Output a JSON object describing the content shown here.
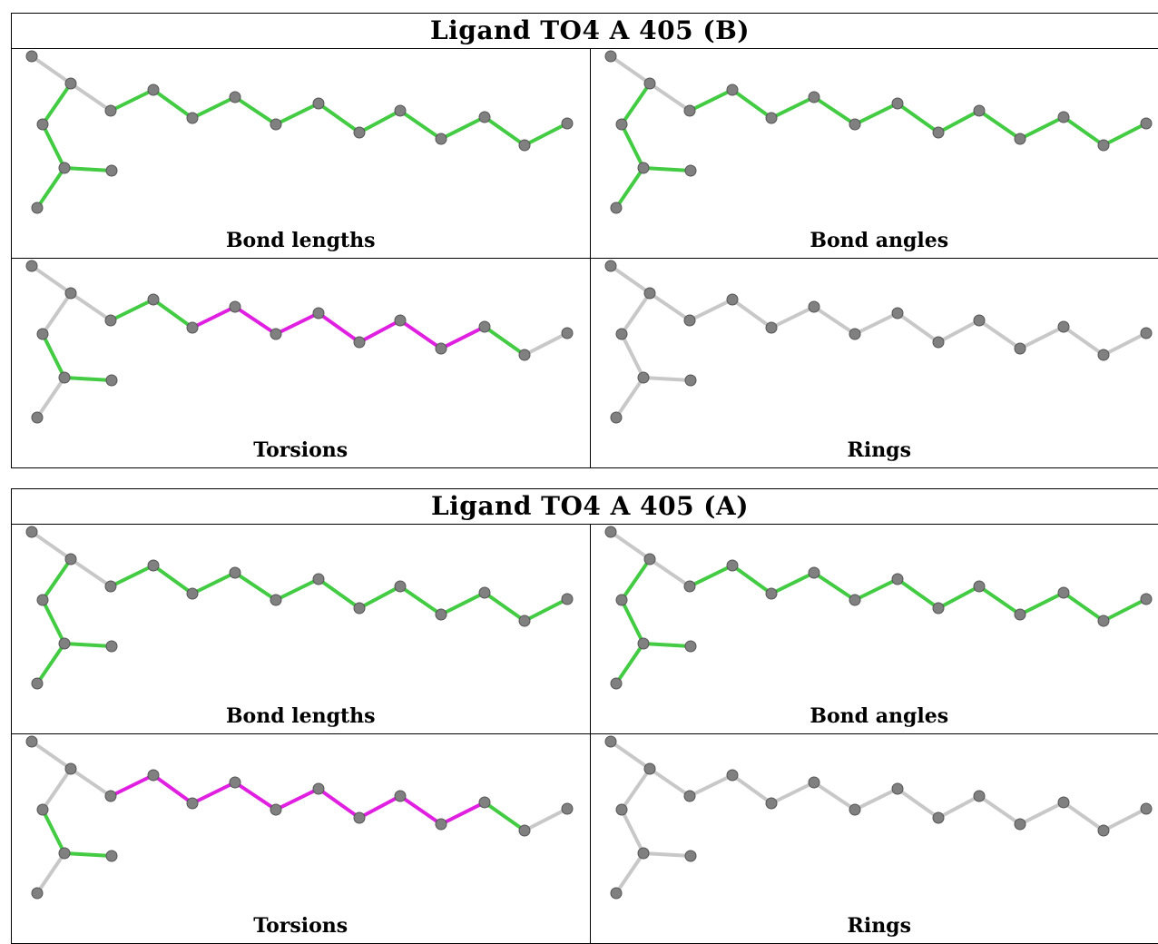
{
  "colors": {
    "bond_ok": "#43cc43",
    "bond_outlier": "#e020e0",
    "bond_neutral": "#c8c8c8",
    "atom": "#808080",
    "atom_edge": "#555555"
  },
  "tables": [
    {
      "title": "Ligand TO4 A 405 (B)",
      "panels": [
        {
          "caption": "Bond lengths",
          "highlight": "bond_lengths"
        },
        {
          "caption": "Bond angles",
          "highlight": "bond_angles"
        },
        {
          "caption": "Torsions",
          "highlight": "torsions"
        },
        {
          "caption": "Rings",
          "highlight": "rings"
        }
      ]
    },
    {
      "title": "Ligand TO4 A 405 (A)",
      "panels": [
        {
          "caption": "Bond lengths",
          "highlight": "bond_lengths"
        },
        {
          "caption": "Bond angles",
          "highlight": "bond_angles"
        },
        {
          "caption": "Torsions",
          "highlight": "torsions"
        },
        {
          "caption": "Rings",
          "highlight": "rings"
        }
      ]
    }
  ]
}
